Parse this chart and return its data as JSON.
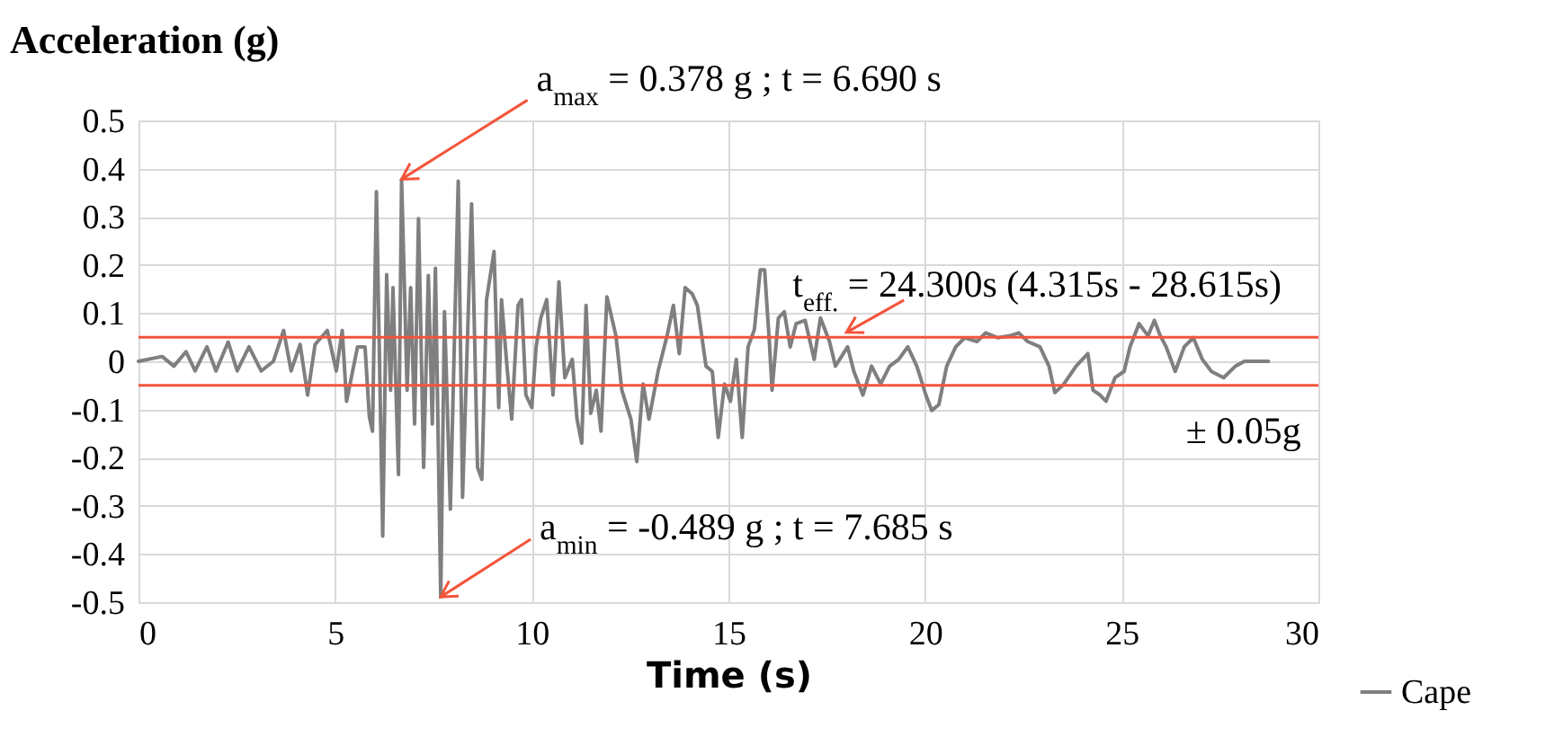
{
  "chart_data": {
    "type": "line",
    "ylabel": "Acceleration (g)",
    "xlabel": "Time (s)",
    "xlim": [
      0,
      30
    ],
    "xticks": [
      0,
      5,
      10,
      15,
      20,
      25,
      30
    ],
    "ylim": [
      -0.5,
      0.5
    ],
    "yticks": [
      -0.5,
      -0.4,
      -0.3,
      -0.2,
      -0.1,
      0,
      0.1,
      0.2,
      0.3,
      0.4,
      0.5
    ],
    "grid": true,
    "legend": "bottom right",
    "marker": "none",
    "line_style": "solid",
    "x": [
      0,
      0.6,
      0.9,
      1.21,
      1.44,
      1.74,
      1.97,
      2.28,
      2.51,
      2.81,
      3.12,
      3.43,
      3.69,
      3.88,
      4.11,
      4.3,
      4.49,
      4.8,
      5.03,
      5.18,
      5.29,
      5.57,
      5.76,
      5.87,
      5.95,
      6.05,
      6.21,
      6.31,
      6.41,
      6.47,
      6.61,
      6.69,
      6.83,
      6.92,
      7.02,
      7.12,
      7.25,
      7.37,
      7.47,
      7.55,
      7.685,
      7.78,
      7.93,
      8.13,
      8.24,
      8.47,
      8.62,
      8.73,
      8.85,
      9.04,
      9.16,
      9.23,
      9.38,
      9.49,
      9.65,
      9.74,
      9.85,
      10.0,
      10.11,
      10.23,
      10.38,
      10.54,
      10.69,
      10.84,
      11.03,
      11.15,
      11.27,
      11.38,
      11.5,
      11.64,
      11.76,
      11.91,
      12.14,
      12.29,
      12.52,
      12.67,
      12.83,
      12.98,
      13.21,
      13.44,
      13.6,
      13.75,
      13.9,
      14.08,
      14.21,
      14.43,
      14.59,
      14.74,
      14.9,
      15.05,
      15.2,
      15.35,
      15.5,
      15.66,
      15.81,
      15.92,
      16.04,
      16.11,
      16.27,
      16.42,
      16.57,
      16.72,
      16.95,
      17.18,
      17.34,
      17.57,
      17.72,
      18.03,
      18.19,
      18.42,
      18.64,
      18.87,
      19.1,
      19.33,
      19.56,
      19.79,
      20.02,
      20.17,
      20.35,
      20.55,
      20.78,
      21.01,
      21.32,
      21.54,
      21.85,
      22.16,
      22.38,
      22.61,
      22.92,
      23.15,
      23.3,
      23.53,
      23.84,
      24.14,
      24.27,
      24.45,
      24.6,
      24.83,
      25.06,
      25.21,
      25.44,
      25.67,
      25.83,
      25.98,
      26.13,
      26.36,
      26.59,
      26.82,
      27.05,
      27.28,
      27.59,
      27.89,
      28.12,
      28.73
    ],
    "series": [
      {
        "name": "Cape",
        "color": "#7f7f7f",
        "values": [
          0,
          0.01,
          -0.01,
          0.02,
          -0.02,
          0.03,
          -0.02,
          0.04,
          -0.02,
          0.03,
          -0.02,
          0,
          0.064,
          -0.02,
          0.035,
          -0.07,
          0.035,
          0.064,
          -0.02,
          0.064,
          -0.083,
          0.03,
          0.03,
          -0.115,
          -0.145,
          0.352,
          -0.363,
          0.18,
          -0.06,
          0.153,
          -0.235,
          0.378,
          -0.06,
          0.153,
          -0.13,
          0.296,
          -0.22,
          0.178,
          -0.13,
          0.193,
          -0.489,
          0.103,
          -0.307,
          0.374,
          -0.282,
          0.327,
          -0.22,
          -0.245,
          0.128,
          0.228,
          -0.096,
          0.128,
          -0.021,
          -0.12,
          0.116,
          0.128,
          -0.07,
          -0.096,
          0.03,
          0.09,
          0.128,
          -0.07,
          0.165,
          -0.034,
          0.004,
          -0.12,
          -0.17,
          0.116,
          -0.108,
          -0.06,
          -0.145,
          0.134,
          0.053,
          -0.06,
          -0.12,
          -0.208,
          -0.047,
          -0.12,
          -0.021,
          0.053,
          0.116,
          0.016,
          0.153,
          0.14,
          0.116,
          -0.01,
          -0.021,
          -0.158,
          -0.047,
          -0.083,
          0.004,
          -0.158,
          0.03,
          0.066,
          0.19,
          0.19,
          0.041,
          -0.06,
          0.09,
          0.103,
          0.03,
          0.078,
          0.085,
          0.004,
          0.09,
          0.041,
          -0.01,
          0.03,
          -0.021,
          -0.07,
          -0.01,
          -0.047,
          -0.01,
          0.004,
          0.03,
          -0.01,
          -0.07,
          -0.102,
          -0.09,
          -0.01,
          0.03,
          0.049,
          0.041,
          0.059,
          0.049,
          0.053,
          0.059,
          0.041,
          0.03,
          -0.01,
          -0.065,
          -0.047,
          -0.01,
          0.016,
          -0.06,
          -0.07,
          -0.083,
          -0.034,
          -0.021,
          0.03,
          0.078,
          0.053,
          0.085,
          0.053,
          0.03,
          -0.021,
          0.03,
          0.049,
          0.004,
          -0.021,
          -0.034,
          -0.01,
          0,
          0
        ]
      }
    ],
    "ref_lines": [
      {
        "axis": "y",
        "value": 0.05,
        "color": "#f4543c"
      },
      {
        "axis": "y",
        "value": -0.05,
        "color": "#f4543c"
      }
    ],
    "annotations": [
      {
        "text": "a$_{max}$ = 0.378 g ; t = 6.690 s",
        "x": 6.69,
        "y": 0.378
      },
      {
        "text": "a$_{min}$ = -0.489 g ; t = 7.685 s",
        "x": 7.685,
        "y": -0.489
      },
      {
        "text": "t$_{eff.}$ = 24.300s (4.315s - 28.615s)",
        "x": 18.0,
        "y": 0.06
      },
      {
        "text": "± 0.05g",
        "x": 27,
        "y": -0.05
      }
    ]
  }
}
